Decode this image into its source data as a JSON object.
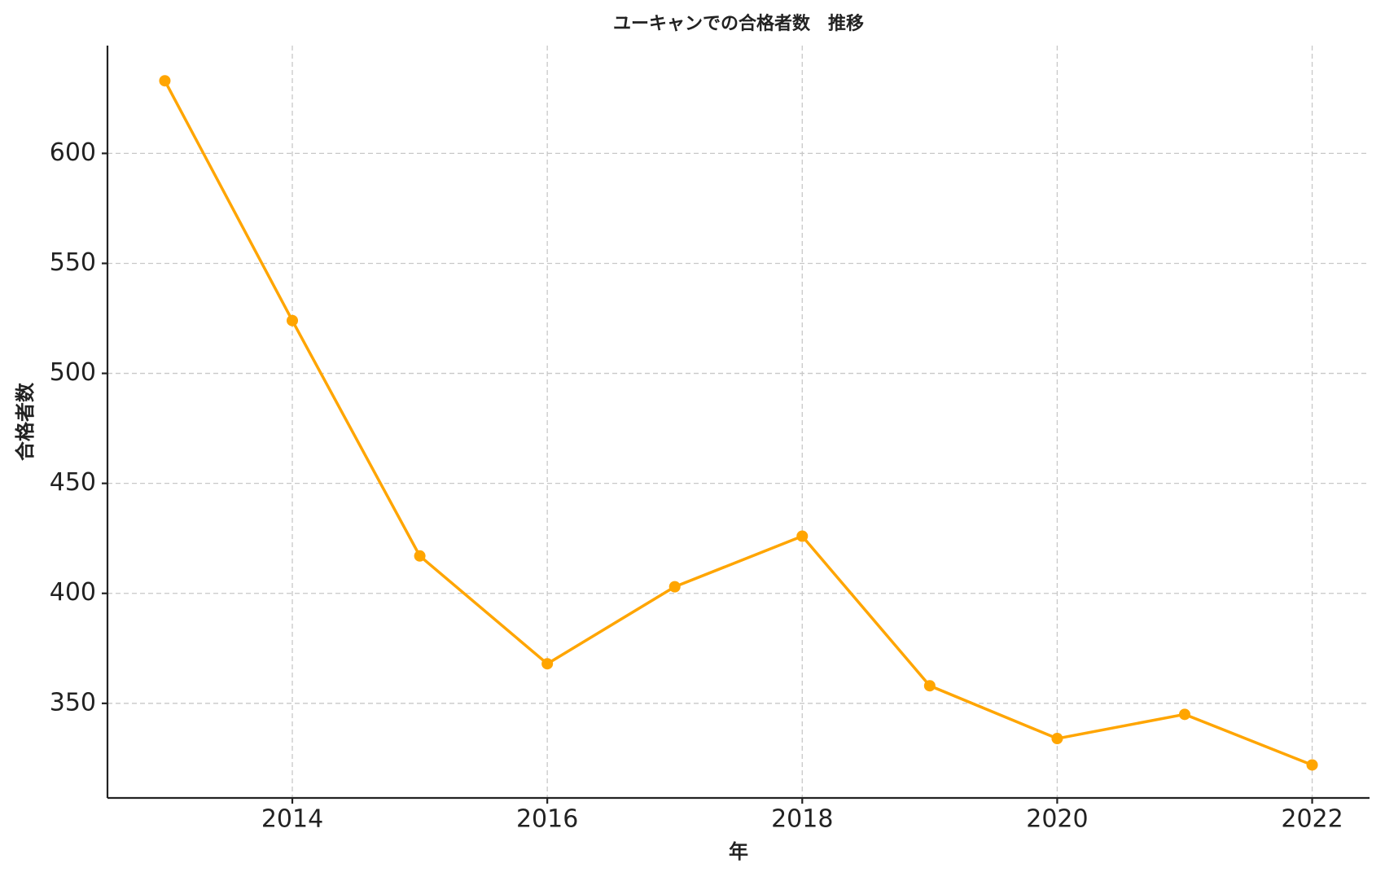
{
  "chart_data": {
    "type": "line",
    "title": "ユーキャンでの合格者数　推移",
    "x_label": "年",
    "y_label": "合格者数",
    "x": [
      2013,
      2014,
      2015,
      2016,
      2017,
      2018,
      2019,
      2020,
      2021,
      2022
    ],
    "series": [
      {
        "name": "合格者数",
        "color": "#ffa500",
        "values": [
          633,
          524,
          417,
          368,
          403,
          426,
          358,
          334,
          345,
          322
        ]
      }
    ],
    "xlim": [
      2012.55,
      2022.45
    ],
    "xticks": [
      2014,
      2016,
      2018,
      2020,
      2022
    ],
    "ylim": [
      307,
      649
    ],
    "yticks": [
      350,
      400,
      450,
      500,
      550,
      600
    ],
    "grid": true
  }
}
